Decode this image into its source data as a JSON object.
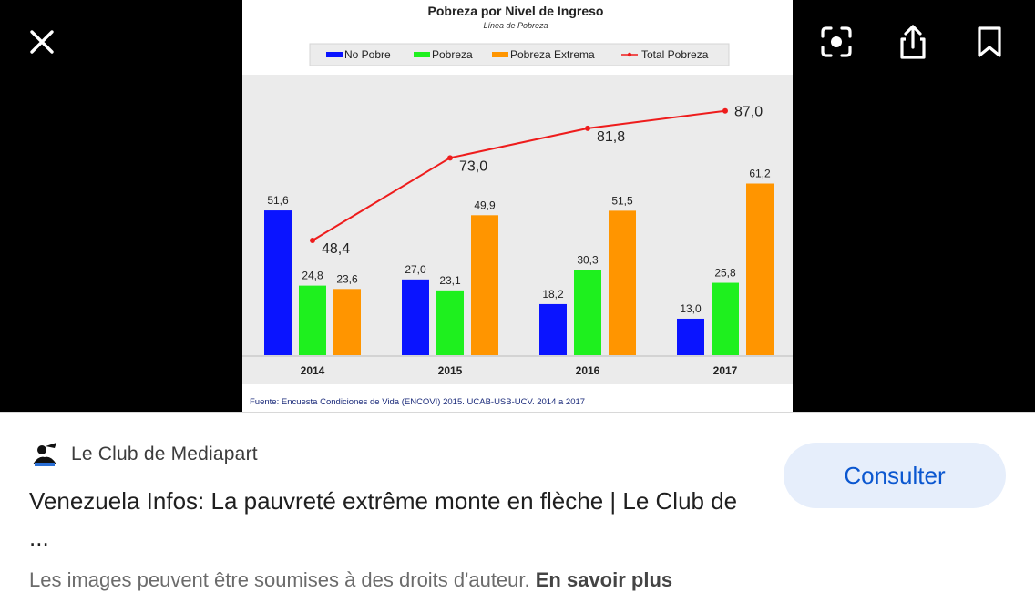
{
  "viewer": {
    "close_icon": "close-icon",
    "lens_icon": "lens-icon",
    "share_icon": "share-icon",
    "bookmark_icon": "bookmark-icon"
  },
  "chart_data": {
    "type": "bar",
    "title": "Pobreza por Nivel de Ingreso",
    "subtitle": "Línea de Pobreza",
    "categories": [
      "2014",
      "2015",
      "2016",
      "2017"
    ],
    "series": [
      {
        "name": "No Pobre",
        "color": "#0a14ff",
        "values": [
          51.6,
          27.0,
          18.2,
          13.0
        ],
        "labels": [
          "51,6",
          "27,0",
          "18,2",
          "13,0"
        ]
      },
      {
        "name": "Pobreza",
        "color": "#1ef01e",
        "values": [
          24.8,
          23.1,
          30.3,
          25.8
        ],
        "labels": [
          "24,8",
          "23,1",
          "30,3",
          "25,8"
        ]
      },
      {
        "name": "Pobreza Extrema",
        "color": "#ff9500",
        "values": [
          23.6,
          49.9,
          51.5,
          61.2
        ],
        "labels": [
          "23,6",
          "49,9",
          "51,5",
          "61,2"
        ]
      }
    ],
    "line_series": {
      "name": "Total Pobreza",
      "color": "#ee1c1c",
      "values": [
        48.4,
        73.0,
        81.8,
        87.0
      ],
      "labels": [
        "48,4",
        "73,0",
        "81,8",
        "87,0"
      ]
    },
    "source": "Fuente: Encuesta Condiciones de Vida (ENCOVI) 2015. UCAB-USB-UCV. 2014 a 2017",
    "legend_position": "top",
    "grid": false
  },
  "result": {
    "source_name": "Le Club de Mediapart",
    "title": "Venezuela Infos: La pauvreté extrême monte en flèche | Le Club de ...",
    "visit_label": "Consulter",
    "copyright_text": "Les images peuvent être soumises à des droits d'auteur.",
    "learn_more": "En savoir plus"
  }
}
